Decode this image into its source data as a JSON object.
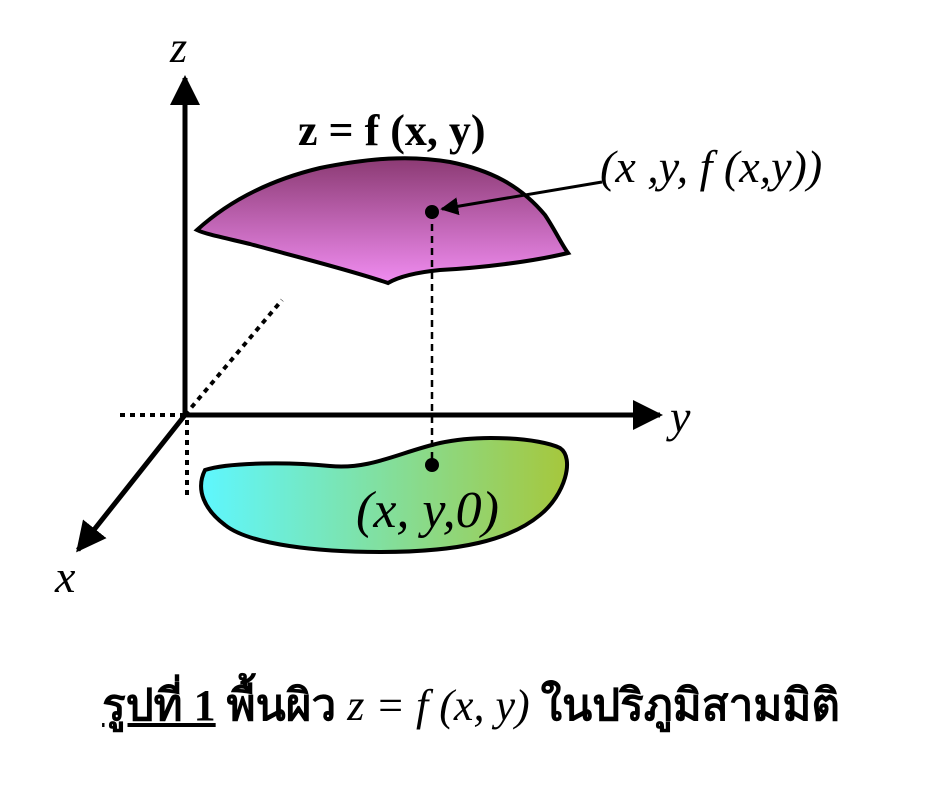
{
  "labels": {
    "axis_z": "z",
    "axis_y": "y",
    "axis_x": "x",
    "surface_eq": "z = f (x, y)",
    "point_upper": "(x ,y, f (x,y))",
    "point_lower": "(x, y,0)"
  },
  "caption": {
    "figure_label": "รูปที่ 1",
    "text_before": "พื้นผิว",
    "equation": "z = f (x, y)",
    "text_after": "ในปริภูมิสามมิติ"
  },
  "colors": {
    "surface_top": "#8b3a73",
    "surface_bottom": "#f08cf0",
    "region_left": "#5ef7ff",
    "region_right": "#a6c73c",
    "stroke": "#000000"
  }
}
